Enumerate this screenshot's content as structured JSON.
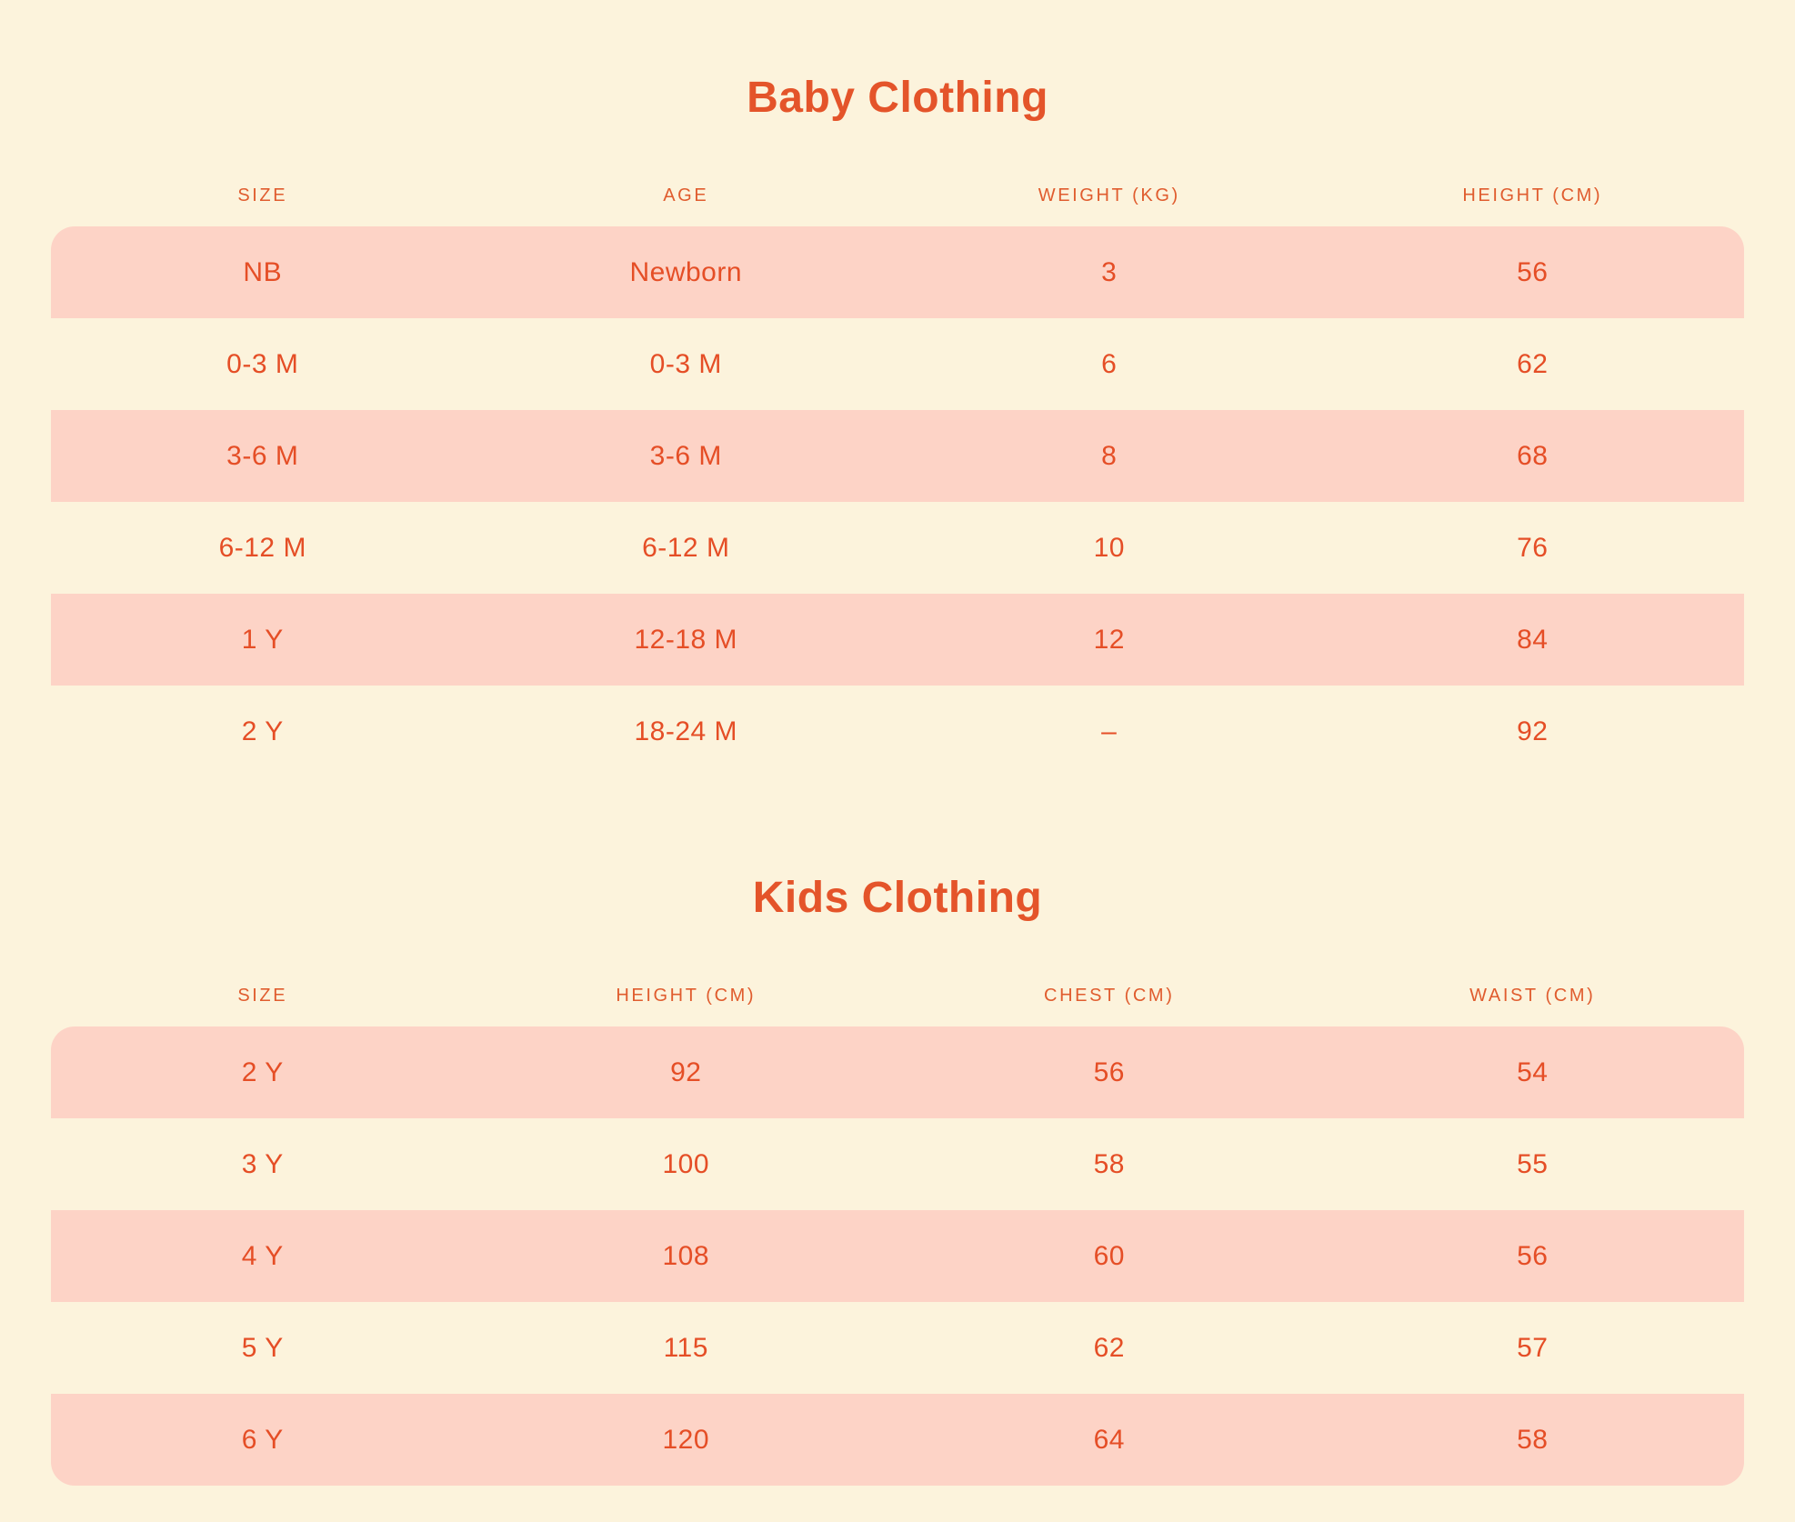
{
  "colors": {
    "background": "#fcf3dc",
    "row_pink": "#fdd3c6",
    "title_orange": "#e4542a",
    "header_orange": "#e05c2e",
    "cell_orange": "#e54e26"
  },
  "baby_table": {
    "title": "Baby Clothing",
    "columns": [
      "SIZE",
      "AGE",
      "WEIGHT (KG)",
      "HEIGHT (CM)"
    ],
    "rows": [
      [
        "NB",
        "Newborn",
        "3",
        "56"
      ],
      [
        "0-3 M",
        "0-3 M",
        "6",
        "62"
      ],
      [
        "3-6 M",
        "3-6 M",
        "8",
        "68"
      ],
      [
        "6-12 M",
        "6-12 M",
        "10",
        "76"
      ],
      [
        "1 Y",
        "12-18 M",
        "12",
        "84"
      ],
      [
        "2 Y",
        "18-24 M",
        "–",
        "92"
      ]
    ]
  },
  "kids_table": {
    "title": "Kids Clothing",
    "columns": [
      "SIZE",
      "HEIGHT (CM)",
      "CHEST (CM)",
      "WAIST (CM)"
    ],
    "rows": [
      [
        "2 Y",
        "92",
        "56",
        "54"
      ],
      [
        "3 Y",
        "100",
        "58",
        "55"
      ],
      [
        "4 Y",
        "108",
        "60",
        "56"
      ],
      [
        "5 Y",
        "115",
        "62",
        "57"
      ],
      [
        "6 Y",
        "120",
        "64",
        "58"
      ]
    ]
  }
}
